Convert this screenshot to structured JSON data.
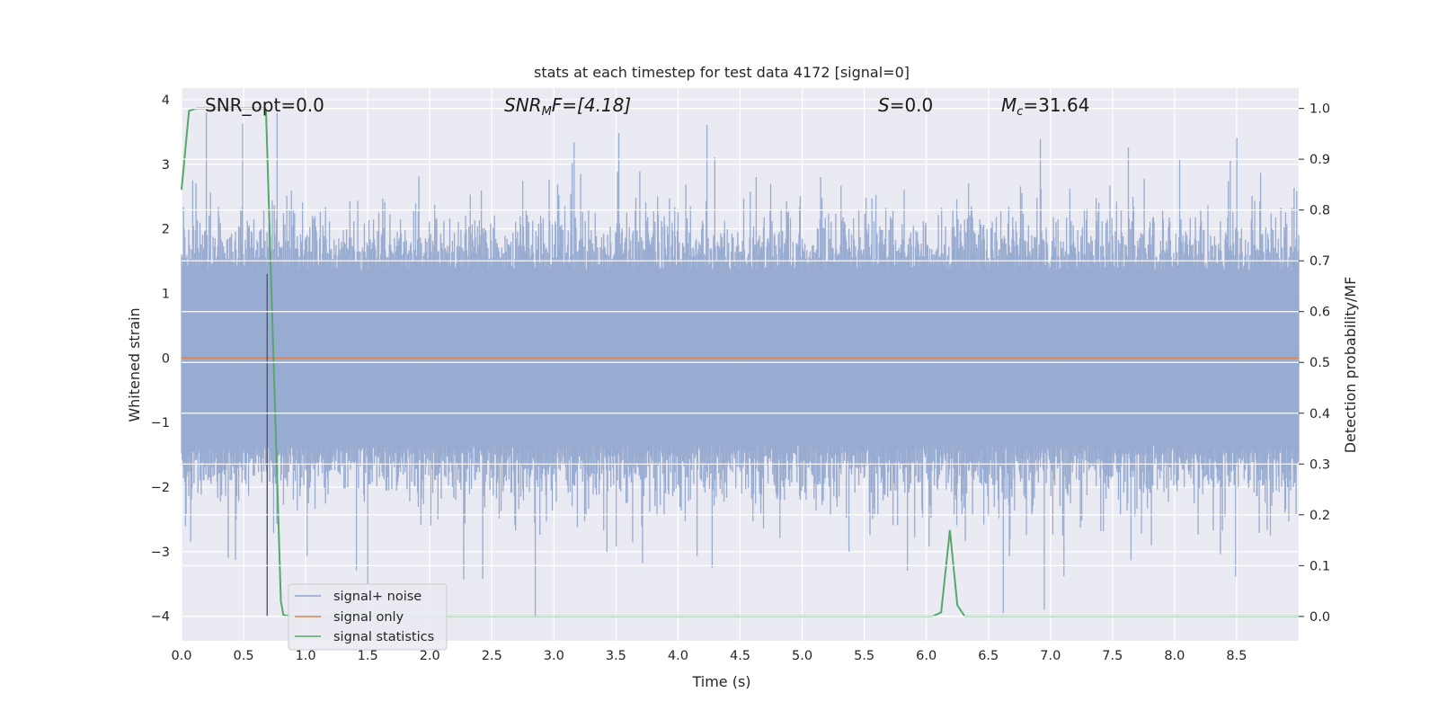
{
  "chart_data": {
    "type": "line",
    "title": "stats at each timestep for test data 4172 [signal=0]",
    "xlabel": "Time (s)",
    "ylabel_left": "Whitened strain",
    "ylabel_right": "Detection probability/MF",
    "xlim": [
      0.0,
      9.0
    ],
    "ylim_left": [
      -4.38,
      4.18
    ],
    "ylim_right": [
      -0.048,
      1.04
    ],
    "x_ticks": [
      "0.0",
      "0.5",
      "1.0",
      "1.5",
      "2.0",
      "2.5",
      "3.0",
      "3.5",
      "4.0",
      "4.5",
      "5.0",
      "5.5",
      "6.0",
      "6.5",
      "7.0",
      "7.5",
      "8.0",
      "8.5"
    ],
    "y_ticks_left": [
      "4",
      "3",
      "2",
      "1",
      "0",
      "−1",
      "−2",
      "−3",
      "−4"
    ],
    "y_ticks_left_values": [
      4,
      3,
      2,
      1,
      0,
      -1,
      -2,
      -3,
      -4
    ],
    "y_ticks_right": [
      "1.0",
      "0.9",
      "0.8",
      "0.7",
      "0.6",
      "0.5",
      "0.4",
      "0.3",
      "0.2",
      "0.1",
      "0.0"
    ],
    "y_ticks_right_values": [
      1.0,
      0.9,
      0.8,
      0.7,
      0.6,
      0.5,
      0.4,
      0.3,
      0.2,
      0.1,
      0.0
    ],
    "grid": true,
    "legend_position": "lower-left",
    "annotations": {
      "snr_opt": "SNR_opt=0.0",
      "snr_mf_main": "SNR",
      "snr_mf_sub": "M",
      "snr_mf_rest": "F=[4.18]",
      "s_main": "S",
      "s_rest": "=0.0",
      "mc_main": "M",
      "mc_sub": "c",
      "mc_rest": "=31.64"
    },
    "marker_line_x": 0.69,
    "marker_line_y": [
      -4.0,
      1.3
    ],
    "series": [
      {
        "name": "signal+ noise",
        "color": "#8fa4cc",
        "description_values": "noise envelope approx -2.5..2.6 with spikes to ±4",
        "spike_x": [
          0.77,
          2.85,
          6.62,
          6.95,
          1.5,
          0.2
        ],
        "spike_y": [
          3.8,
          -4.0,
          -3.95,
          -3.9,
          -3.5,
          3.8
        ]
      },
      {
        "name": "signal only",
        "color": "#dd8452",
        "x": [
          0.0,
          9.0
        ],
        "y": [
          0.0,
          0.0
        ]
      },
      {
        "name": "signal statistics",
        "color": "#55a868",
        "axis": "right",
        "x": [
          0.0,
          0.06,
          0.12,
          0.5,
          0.68,
          0.8,
          0.82,
          0.88,
          0.94,
          6.05,
          6.12,
          6.19,
          6.25,
          6.31,
          9.0
        ],
        "y": [
          0.84,
          0.995,
          1.0,
          1.0,
          1.0,
          0.03,
          0.003,
          0.0,
          0.0,
          0.0,
          0.008,
          0.17,
          0.022,
          0.0,
          0.0
        ]
      }
    ]
  }
}
